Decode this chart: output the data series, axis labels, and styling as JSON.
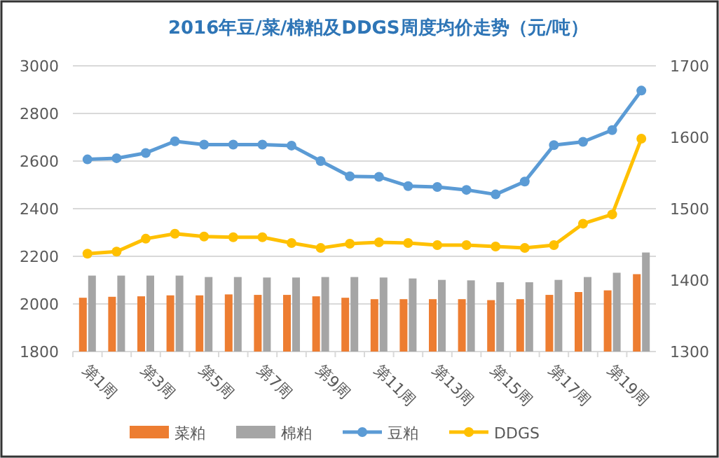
{
  "chart_data": {
    "type": "bar",
    "title": "2016年豆/菜/棉粕及DDGS周度均价走势（元/吨）",
    "categories": [
      "第1周",
      null,
      "第3周",
      null,
      "第5周",
      null,
      "第7周",
      null,
      "第9周",
      null,
      "第11周",
      null,
      "第13周",
      null,
      "第15周",
      null,
      "第17周",
      null,
      "第19周",
      null
    ],
    "series": [
      {
        "name": "菜粕",
        "color": "#ed7d31",
        "values": [
          2026,
          2030,
          2032,
          2036,
          2036,
          2040,
          2038,
          2038,
          2032,
          2026,
          2020,
          2020,
          2020,
          2020,
          2016,
          2020,
          2038,
          2050,
          2057,
          2125
        ]
      },
      {
        "name": "棉粕",
        "color": "#a5a5a5",
        "values": [
          2119,
          2119,
          2119,
          2119,
          2113,
          2113,
          2111,
          2111,
          2113,
          2113,
          2111,
          2107,
          2101,
          2099,
          2091,
          2091,
          2101,
          2113,
          2131,
          2216
        ]
      },
      {
        "name": "豆粕",
        "type": "line",
        "color": "#5b9bd5",
        "values": [
          2607,
          2612,
          2634,
          2683,
          2669,
          2669,
          2669,
          2665,
          2600,
          2536,
          2534,
          2495,
          2491,
          2479,
          2460,
          2514,
          2667,
          2681,
          2730,
          2896
        ]
      },
      {
        "name": "DDGS",
        "type": "line",
        "axis": "y2",
        "color": "#ffc000",
        "values": [
          1437,
          1440,
          1458,
          1465,
          1461,
          1460,
          1460,
          1452,
          1445,
          1451,
          1453,
          1452,
          1449,
          1449,
          1447,
          1445,
          1449,
          1479,
          1492,
          1598
        ]
      }
    ],
    "ylim": [
      1800,
      3000
    ],
    "yticks": [
      1800,
      2000,
      2200,
      2400,
      2600,
      2800,
      3000
    ],
    "y2lim": [
      1300,
      1700
    ],
    "y2ticks": [
      1300,
      1400,
      1500,
      1600,
      1700
    ],
    "grid": "y",
    "legend": "bottom",
    "marker": "circle"
  }
}
